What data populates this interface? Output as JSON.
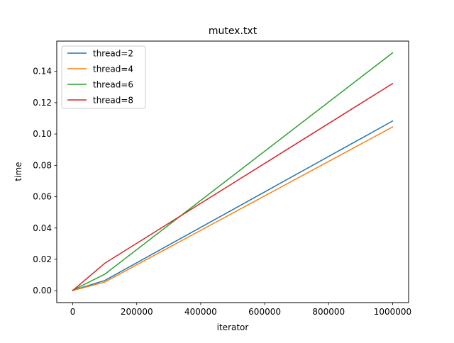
{
  "chart_data": {
    "type": "line",
    "title": "mutex.txt",
    "xlabel": "iterator",
    "ylabel": "time",
    "x": [
      0,
      100000,
      1000000
    ],
    "xlim": [
      -50000,
      1050000
    ],
    "ylim": [
      -0.0076,
      0.1593
    ],
    "xticks": [
      0,
      200000,
      400000,
      600000,
      800000,
      1000000
    ],
    "xtick_labels": [
      "0",
      "200000",
      "400000",
      "600000",
      "800000",
      "1000000"
    ],
    "yticks": [
      0.0,
      0.02,
      0.04,
      0.06,
      0.08,
      0.1,
      0.12,
      0.14
    ],
    "ytick_labels": [
      "0.00",
      "0.02",
      "0.04",
      "0.06",
      "0.08",
      "0.10",
      "0.12",
      "0.14"
    ],
    "grid": false,
    "legend_position": "top-left",
    "series": [
      {
        "name": "thread=2",
        "color": "#1f77b4",
        "values": [
          0.0002,
          0.0065,
          0.1083
        ]
      },
      {
        "name": "thread=4",
        "color": "#ff7f0e",
        "values": [
          0.0001,
          0.0055,
          0.1045
        ]
      },
      {
        "name": "thread=6",
        "color": "#2ca02c",
        "values": [
          0.0003,
          0.0105,
          0.1518
        ]
      },
      {
        "name": "thread=8",
        "color": "#d62728",
        "values": [
          0.0001,
          0.0175,
          0.1322
        ]
      }
    ]
  }
}
